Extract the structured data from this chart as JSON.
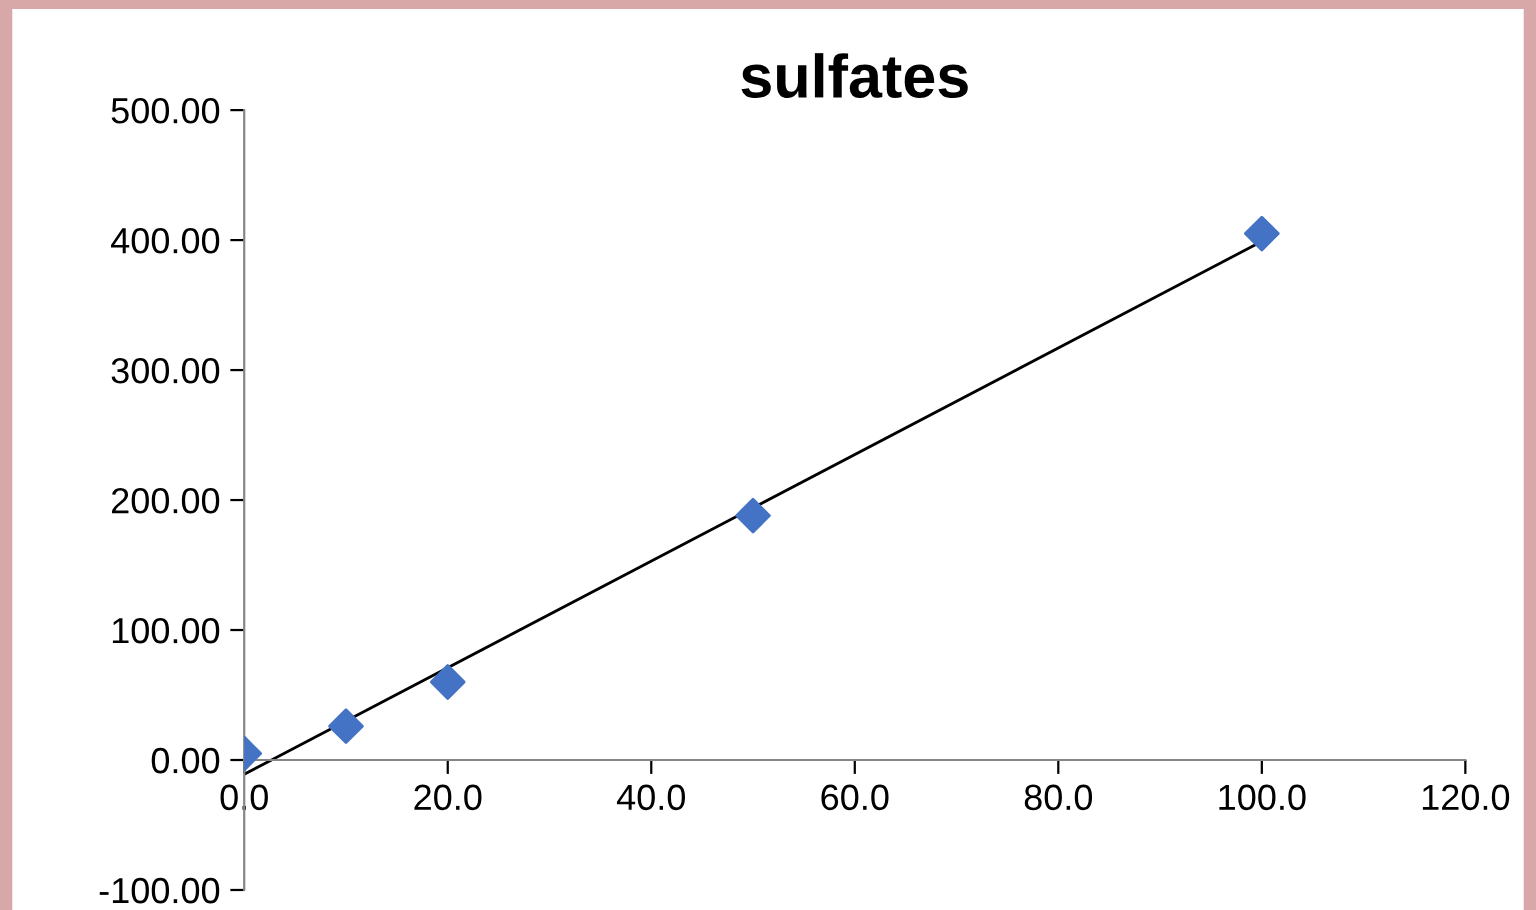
{
  "chart_data": {
    "type": "scatter",
    "title": "sulfates",
    "series": [
      {
        "color": "#4472c4",
        "marker": "diamond",
        "x": [
          0,
          10,
          20,
          50,
          100
        ],
        "values": [
          5,
          26,
          60,
          188,
          405
        ]
      },
      {
        "type": "line",
        "color": "#000000",
        "marker": "none",
        "line_style": "solid",
        "x": [
          0,
          100
        ],
        "values": [
          -11,
          399
        ]
      }
    ],
    "xlim": [
      0,
      120
    ],
    "xticks": [
      {
        "value": 0,
        "label": "0.0"
      },
      {
        "value": 20,
        "label": "20.0"
      },
      {
        "value": 40,
        "label": "40.0"
      },
      {
        "value": 60,
        "label": "60.0"
      },
      {
        "value": 80,
        "label": "80.0"
      },
      {
        "value": 100,
        "label": "100.0"
      },
      {
        "value": 120,
        "label": "120.0"
      }
    ],
    "ylim": [
      -100,
      500
    ],
    "yticks": [
      {
        "value": -100,
        "label": "-100.00"
      },
      {
        "value": 0,
        "label": "0.00"
      },
      {
        "value": 100,
        "label": "100.00"
      },
      {
        "value": 200,
        "label": "200.00"
      },
      {
        "value": 300,
        "label": "300.00"
      },
      {
        "value": 400,
        "label": "400.00"
      },
      {
        "value": 500,
        "label": "500.00"
      }
    ],
    "grid": false
  }
}
